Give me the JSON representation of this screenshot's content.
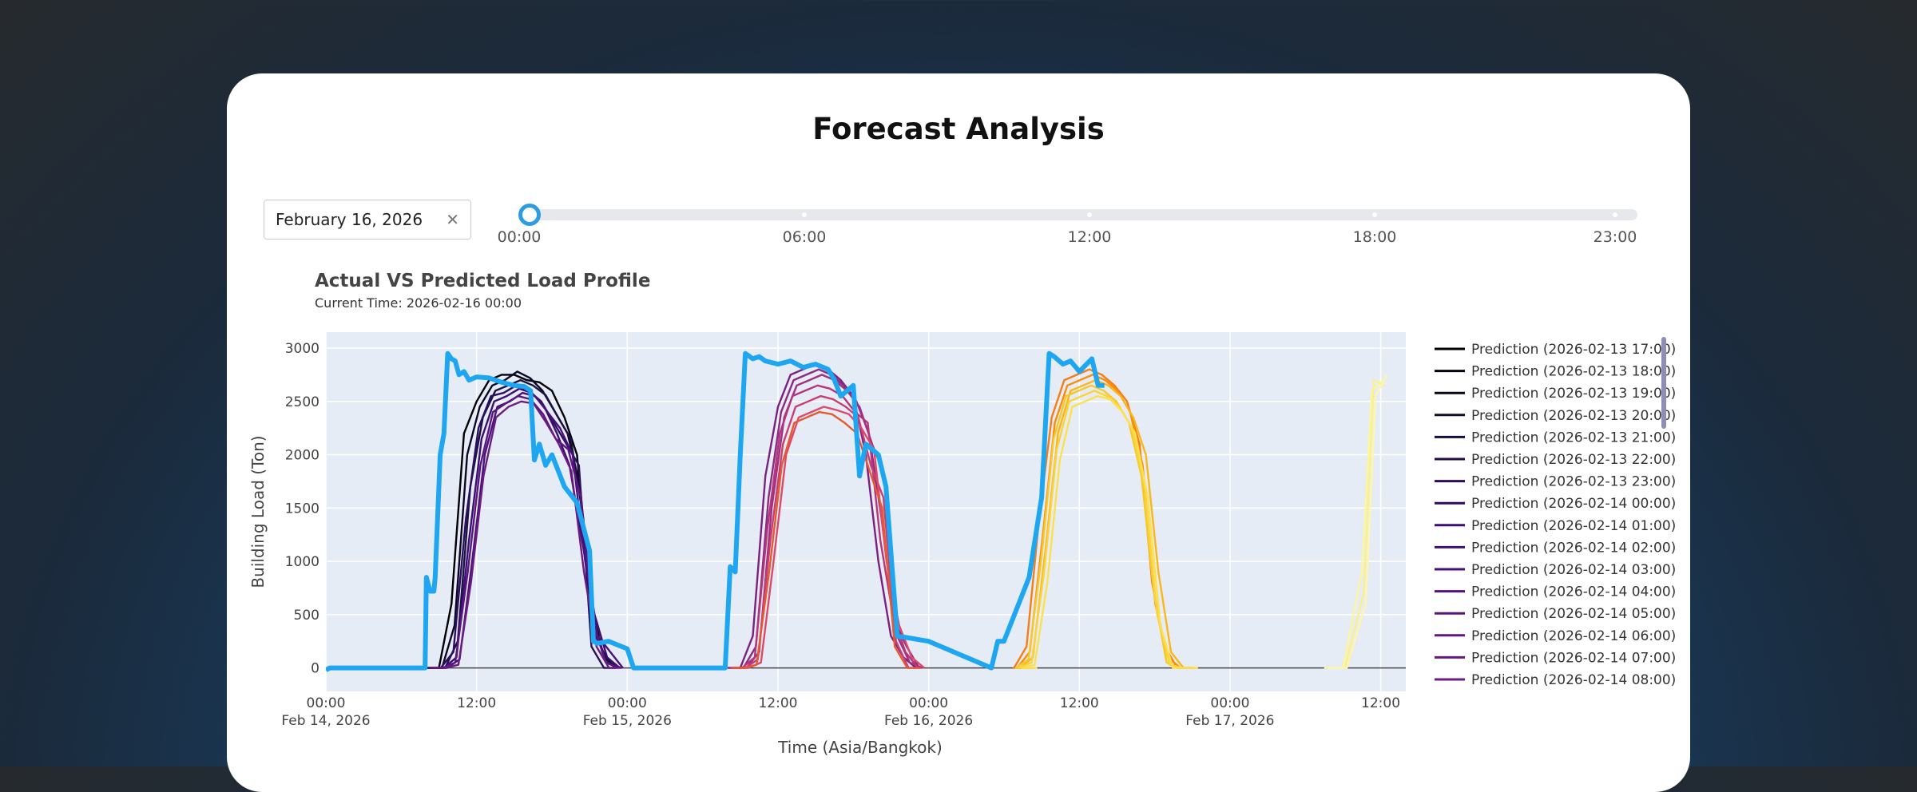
{
  "page_title": "Forecast Analysis",
  "date_picker": {
    "value": "February 16, 2026",
    "clear_icon": "close-icon"
  },
  "time_slider": {
    "labels": [
      "00:00",
      "06:00",
      "12:00",
      "18:00",
      "23:00"
    ],
    "selected": "00:00",
    "selected_fraction": 0
  },
  "colors": {
    "actual": "#1ea7f0",
    "accent": "#2d9ce0",
    "plot_bg": "#e5ecf6",
    "zero_line": "#444444"
  },
  "chart_data": {
    "type": "line",
    "title": "Actual VS Predicted Load Profile",
    "subtitle": "Current Time: 2026-02-16 00:00",
    "ylabel": "Building Load (Ton)",
    "xlabel": "Time (Asia/Bangkok)",
    "xlim_hours": [
      0,
      86
    ],
    "ylim": [
      -220,
      3150
    ],
    "yticks": [
      0,
      500,
      1000,
      1500,
      2000,
      2500,
      3000
    ],
    "xticks": [
      {
        "h": 0,
        "label": "00:00",
        "sub": "Feb 14, 2026"
      },
      {
        "h": 12,
        "label": "12:00",
        "sub": ""
      },
      {
        "h": 24,
        "label": "00:00",
        "sub": "Feb 15, 2026"
      },
      {
        "h": 36,
        "label": "12:00",
        "sub": ""
      },
      {
        "h": 48,
        "label": "00:00",
        "sub": "Feb 16, 2026"
      },
      {
        "h": 60,
        "label": "12:00",
        "sub": ""
      },
      {
        "h": 72,
        "label": "00:00",
        "sub": "Feb 17, 2026"
      },
      {
        "h": 84,
        "label": "12:00",
        "sub": ""
      }
    ],
    "actual": {
      "name": "Actual",
      "x": [
        0,
        0.3,
        7.9,
        8.0,
        8.3,
        8.6,
        8.7,
        9.1,
        9.4,
        9.7,
        10.0,
        10.3,
        10.6,
        11.0,
        11.4,
        12.0,
        13.0,
        14.0,
        15.0,
        15.8,
        16.3,
        16.6,
        17.0,
        17.5,
        18.0,
        19.0,
        20.0,
        21.0,
        21.3,
        21.6,
        22.5,
        24.0,
        24.5,
        31.8,
        32.2,
        32.6,
        33.0,
        33.4,
        34.0,
        34.5,
        35.0,
        36.0,
        37.0,
        38.0,
        39.0,
        40.0,
        40.5,
        41.0,
        42.0,
        42.5,
        43.0,
        44.0,
        44.6,
        45.5,
        48.0,
        53.0,
        53.5,
        54.0,
        56.0,
        57.0,
        57.6,
        58.0,
        58.7,
        59.3,
        60.0,
        61.0,
        61.5,
        62.0
      ],
      "y": [
        -20,
        0,
        0,
        850,
        720,
        720,
        850,
        2000,
        2200,
        2950,
        2900,
        2880,
        2750,
        2780,
        2700,
        2730,
        2720,
        2680,
        2650,
        2640,
        2600,
        1950,
        2100,
        1900,
        2000,
        1700,
        1550,
        1100,
        250,
        230,
        250,
        180,
        0,
        0,
        950,
        900,
        2000,
        2950,
        2900,
        2920,
        2880,
        2850,
        2880,
        2820,
        2850,
        2800,
        2700,
        2550,
        2650,
        1800,
        2100,
        2000,
        1700,
        300,
        250,
        0,
        250,
        250,
        850,
        1600,
        2950,
        2920,
        2850,
        2880,
        2780,
        2900,
        2650,
        2650
      ]
    },
    "predictions": [
      {
        "day": 0,
        "y": [
          0,
          0,
          600,
          2200,
          2500,
          2700,
          2750,
          2750,
          2700,
          2680,
          2600,
          2350,
          2000,
          700,
          150,
          0
        ]
      },
      {
        "day": 0,
        "y": [
          0,
          0,
          400,
          2000,
          2450,
          2650,
          2700,
          2780,
          2720,
          2600,
          2400,
          2200,
          1700,
          450,
          80,
          0
        ]
      },
      {
        "day": 0,
        "y": [
          0,
          0,
          250,
          1700,
          2350,
          2600,
          2650,
          2700,
          2650,
          2560,
          2350,
          2150,
          1400,
          300,
          50,
          0
        ]
      },
      {
        "day": 0,
        "y": [
          0,
          0,
          150,
          1400,
          2250,
          2550,
          2580,
          2650,
          2600,
          2500,
          2300,
          2100,
          1900,
          200,
          0,
          0
        ]
      },
      {
        "day": 0,
        "y": [
          0,
          0,
          100,
          1200,
          2150,
          2500,
          2550,
          2620,
          2580,
          2450,
          2200,
          1900,
          1200,
          500,
          100,
          0
        ]
      },
      {
        "day": 0,
        "y": [
          0,
          0,
          80,
          1000,
          2000,
          2450,
          2500,
          2580,
          2550,
          2400,
          2250,
          2000,
          1000,
          300,
          150,
          0
        ]
      },
      {
        "day": 0,
        "y": [
          0,
          0,
          50,
          900,
          1900,
          2400,
          2480,
          2550,
          2520,
          2380,
          2150,
          2050,
          1600,
          400,
          50,
          0
        ]
      },
      {
        "day": 0,
        "y": [
          0,
          0,
          30,
          800,
          1800,
          2350,
          2450,
          2500,
          2480,
          2300,
          2100,
          1850,
          900,
          200,
          0,
          0
        ]
      },
      {
        "day": 1,
        "y": [
          0,
          0,
          300,
          1800,
          2450,
          2750,
          2800,
          2850,
          2800,
          2700,
          2550,
          2000,
          1000,
          300,
          100,
          0
        ]
      },
      {
        "day": 1,
        "y": [
          0,
          0,
          200,
          1600,
          2400,
          2700,
          2750,
          2800,
          2750,
          2650,
          2500,
          2200,
          1400,
          450,
          200,
          0
        ]
      },
      {
        "day": 1,
        "y": [
          0,
          0,
          150,
          1500,
          2350,
          2650,
          2700,
          2750,
          2700,
          2600,
          2450,
          2100,
          1800,
          300,
          50,
          0
        ]
      },
      {
        "day": 1,
        "y": [
          0,
          0,
          100,
          1300,
          2200,
          2550,
          2600,
          2650,
          2620,
          2550,
          2400,
          2300,
          1200,
          500,
          150,
          0
        ]
      },
      {
        "day": 1,
        "y": [
          0,
          0,
          80,
          1200,
          2100,
          2450,
          2500,
          2550,
          2520,
          2450,
          2350,
          1900,
          1600,
          250,
          0,
          0
        ]
      },
      {
        "day": 1,
        "y": [
          0,
          0,
          50,
          1000,
          2000,
          2350,
          2400,
          2450,
          2420,
          2380,
          2250,
          2050,
          1000,
          400,
          100,
          0
        ]
      },
      {
        "day": 1,
        "y": [
          0,
          0,
          30,
          900,
          1900,
          2300,
          2350,
          2400,
          2380,
          2300,
          2200,
          1850,
          1500,
          200,
          0,
          0
        ]
      },
      {
        "day": 2,
        "y": [
          0,
          0,
          200,
          1400,
          2350,
          2700,
          2750,
          2800,
          2750,
          2650,
          2500,
          2100,
          800,
          200,
          0,
          0
        ]
      },
      {
        "day": 2,
        "y": [
          0,
          0,
          150,
          1200,
          2300,
          2650,
          2700,
          2750,
          2700,
          2600,
          2400,
          1900,
          600,
          100,
          0,
          0
        ]
      },
      {
        "day": 2,
        "y": [
          0,
          0,
          100,
          1100,
          2200,
          2600,
          2650,
          2700,
          2650,
          2550,
          2350,
          2000,
          900,
          150,
          0,
          0
        ]
      },
      {
        "day": 2,
        "y": [
          0,
          0,
          80,
          1000,
          2150,
          2550,
          2600,
          2650,
          2600,
          2500,
          2300,
          1800,
          700,
          50,
          0,
          0
        ]
      },
      {
        "day": 2,
        "y": [
          0,
          0,
          50,
          900,
          2050,
          2500,
          2550,
          2600,
          2550,
          2450,
          2250,
          1700,
          500,
          30,
          0,
          0
        ]
      },
      {
        "day": 2,
        "y": [
          0,
          0,
          30,
          800,
          1950,
          2450,
          2500,
          2550,
          2520,
          2400,
          2200,
          1600,
          400,
          0,
          0,
          0
        ]
      },
      {
        "day": 3,
        "y": [
          0,
          0,
          0,
          900,
          2600,
          2700
        ]
      },
      {
        "day": 3,
        "y": [
          0,
          0,
          0,
          700,
          2700,
          2650
        ]
      },
      {
        "day": 3,
        "y": [
          0,
          0,
          0,
          600,
          2550,
          2750
        ]
      }
    ],
    "legend": [
      "Prediction (2026-02-13 17:00)",
      "Prediction (2026-02-13 18:00)",
      "Prediction (2026-02-13 19:00)",
      "Prediction (2026-02-13 20:00)",
      "Prediction (2026-02-13 21:00)",
      "Prediction (2026-02-13 22:00)",
      "Prediction (2026-02-13 23:00)",
      "Prediction (2026-02-14 00:00)",
      "Prediction (2026-02-14 01:00)",
      "Prediction (2026-02-14 02:00)",
      "Prediction (2026-02-14 03:00)",
      "Prediction (2026-02-14 04:00)",
      "Prediction (2026-02-14 05:00)",
      "Prediction (2026-02-14 06:00)",
      "Prediction (2026-02-14 07:00)",
      "Prediction (2026-02-14 08:00)"
    ],
    "legend_colors": [
      "#000004",
      "#05030f",
      "#0a071c",
      "#120b2c",
      "#190c3e",
      "#210c4a",
      "#2a0b57",
      "#330a5f",
      "#3b0f70",
      "#420f74",
      "#4a1079",
      "#51127c",
      "#59157e",
      "#5f187f",
      "#661a80",
      "#6d1d81"
    ]
  }
}
